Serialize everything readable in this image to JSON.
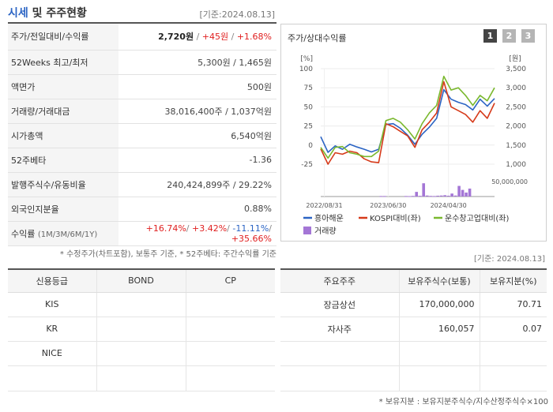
{
  "header": {
    "title_main": "시세",
    "title_rest": " 및 주주현황",
    "date": "[기준:2024.08.13]"
  },
  "price_table": {
    "rows": [
      {
        "label": "주가/전일대비/수익률",
        "price": "2,720원",
        "change": "+45원",
        "rate": "+1.68%"
      },
      {
        "label": "52Weeks 최고/최저",
        "value": "5,300원 / 1,465원"
      },
      {
        "label": "액면가",
        "value": "500원"
      },
      {
        "label": "거래량/거래대금",
        "value": "38,016,400주 / 1,037억원"
      },
      {
        "label": "시가총액",
        "value": "6,540억원"
      },
      {
        "label": "52주베타",
        "value": "-1.36"
      },
      {
        "label": "발행주식수/유동비율",
        "value": "240,424,899주 / 29.22%"
      },
      {
        "label": "외국인지분율",
        "value": "0.88%"
      },
      {
        "label": "수익률",
        "label_sub": "(1M/3M/6M/1Y)",
        "r1": "+16.74%",
        "r2": "+3.42%",
        "r3": "-11.11%",
        "r4": "+35.66%"
      }
    ],
    "footnote": "* 수정주가(차트포함), 보통주 기준, * 52주베타: 주간수익률 기준"
  },
  "chart_panel": {
    "title": "주가/상대수익률",
    "tabs": [
      "1",
      "2",
      "3"
    ],
    "tab_colors": {
      "active": "#444444",
      "inactive": "#b5b5b5"
    }
  },
  "chart_data": {
    "type": "line",
    "left_axis_unit": "[%]",
    "right_axis_unit": "[원]",
    "left_ticks": [
      "100",
      "75",
      "50",
      "25",
      "0",
      "-25"
    ],
    "left_range": [
      -25,
      100
    ],
    "right_ticks": [
      "3,500",
      "3,000",
      "2,500",
      "2,000",
      "1,500",
      "1,000"
    ],
    "right_range": [
      1000,
      3500
    ],
    "volume_tick": "50,000,000",
    "volume_range": [
      0,
      50000000
    ],
    "x_ticks": [
      "2022/08/31",
      "2023/06/30",
      "2024/04/30"
    ],
    "x_tick_positions": [
      1,
      19,
      36
    ],
    "colors": {
      "price": "#2b64c4",
      "kospi": "#d63a1a",
      "industry": "#7ab82e",
      "volume": "#a476d6"
    },
    "series": [
      {
        "name": "흥아해운",
        "key": "price",
        "axis": "right",
        "values": [
          1720,
          1310,
          1480,
          1390,
          1520,
          1450,
          1390,
          1320,
          1390,
          2040,
          2060,
          1940,
          1760,
          1520,
          1780,
          1970,
          2200,
          2950,
          2700,
          2620,
          2560,
          2420,
          2700,
          2520,
          2720
        ]
      },
      {
        "name": "KOSPI대비(좌)",
        "key": "kospi",
        "axis": "left",
        "values": [
          -5,
          -25,
          -10,
          -12,
          -8,
          -10,
          -18,
          -22,
          -23,
          28,
          24,
          18,
          12,
          -3,
          20,
          30,
          42,
          83,
          50,
          45,
          40,
          30,
          45,
          35,
          55
        ]
      },
      {
        "name": "운수창고업대비(좌)",
        "key": "industry",
        "axis": "left",
        "values": [
          -3,
          -17,
          -3,
          -2,
          -10,
          -12,
          -15,
          -15,
          -8,
          32,
          35,
          30,
          20,
          8,
          28,
          42,
          52,
          90,
          72,
          75,
          65,
          52,
          65,
          58,
          75
        ]
      },
      {
        "name": "거래량",
        "key": "volume",
        "axis": "volume",
        "values": [
          0,
          0,
          0,
          0,
          0,
          0,
          0,
          0,
          0,
          0,
          0,
          0,
          0,
          0,
          0,
          0,
          0,
          0,
          0,
          0,
          0,
          0,
          0,
          0,
          0,
          0,
          0,
          0,
          0,
          0,
          0,
          0,
          0,
          0,
          0,
          0,
          0,
          0,
          0,
          0,
          0,
          0,
          0,
          0,
          0,
          0,
          0,
          0,
          0,
          0
        ]
      }
    ],
    "volume_bars": [
      {
        "i": 17,
        "v": 1500000
      },
      {
        "i": 18,
        "v": 1500000
      },
      {
        "i": 24,
        "v": 1500000
      },
      {
        "i": 25,
        "v": 1200000
      },
      {
        "i": 26,
        "v": 1800000
      },
      {
        "i": 27,
        "v": 14000000
      },
      {
        "i": 28,
        "v": 2000000
      },
      {
        "i": 29,
        "v": 40000000
      },
      {
        "i": 30,
        "v": 3000000
      },
      {
        "i": 31,
        "v": 1800000
      },
      {
        "i": 32,
        "v": 1500000
      },
      {
        "i": 33,
        "v": 2500000
      },
      {
        "i": 34,
        "v": 3000000
      },
      {
        "i": 35,
        "v": 4000000
      },
      {
        "i": 36,
        "v": 2500000
      },
      {
        "i": 37,
        "v": 9000000
      },
      {
        "i": 38,
        "v": 3000000
      },
      {
        "i": 39,
        "v": 32000000
      },
      {
        "i": 40,
        "v": 20000000
      },
      {
        "i": 41,
        "v": 12000000
      },
      {
        "i": 42,
        "v": 24000000
      }
    ],
    "legend": [
      "흥아해운",
      "KOSPI대비(좌)",
      "운수창고업대비(좌)",
      "거래량"
    ]
  },
  "credit_table": {
    "date": "[기준: 2024.08.13]",
    "headers": [
      "신용등급",
      "BOND",
      "CP"
    ],
    "rows": [
      [
        "KIS",
        "",
        ""
      ],
      [
        "KR",
        "",
        ""
      ],
      [
        "NICE",
        "",
        ""
      ],
      [
        "",
        "",
        ""
      ]
    ]
  },
  "holder_table": {
    "headers": [
      "주요주주",
      "보유주식수(보통)",
      "보유지분(%)"
    ],
    "rows": [
      [
        "장금상선",
        "170,000,000",
        "70.71"
      ],
      [
        "자사주",
        "160,057",
        "0.07"
      ],
      [
        "",
        "",
        ""
      ],
      [
        "",
        "",
        ""
      ]
    ],
    "footnote": "* 보유지분 : 보유지분주식수/지수산정주식수×100"
  }
}
